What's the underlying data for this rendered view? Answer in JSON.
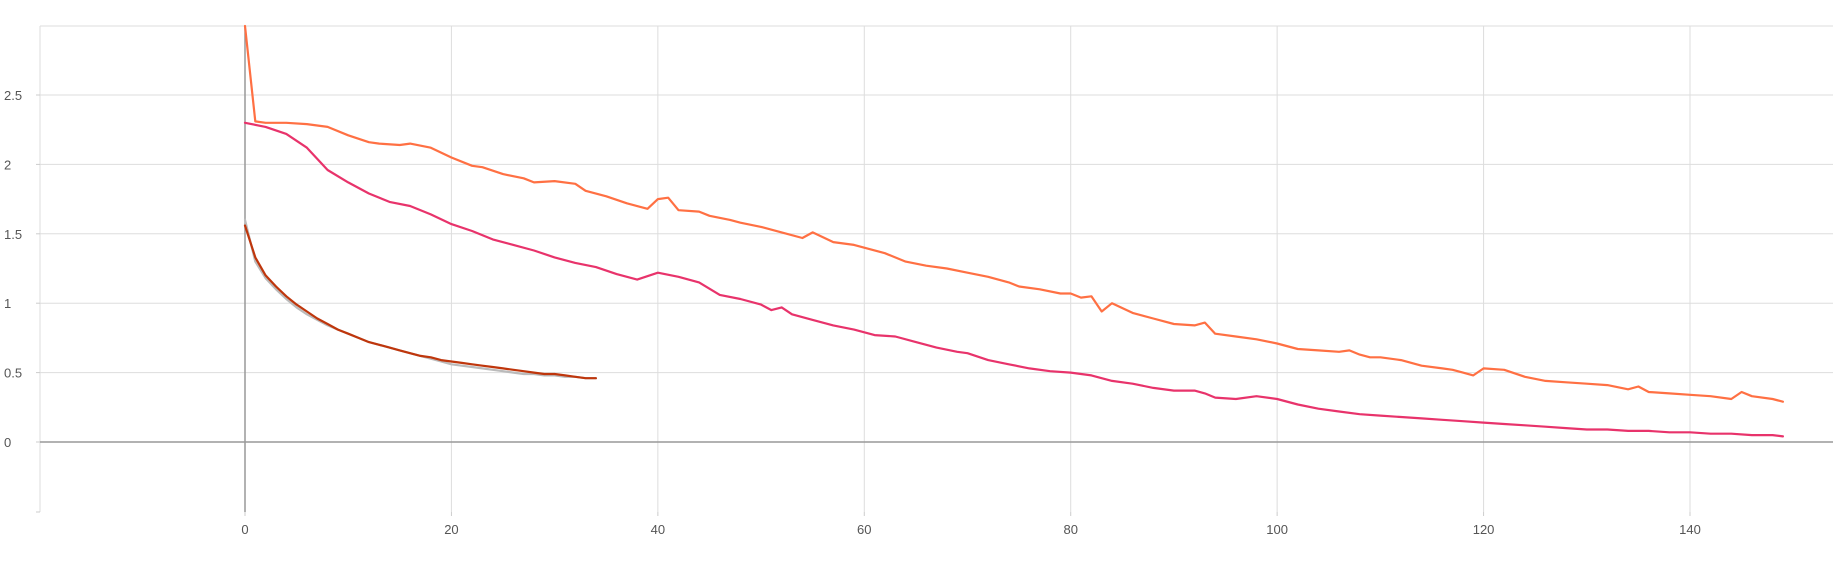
{
  "chart_data": {
    "type": "line",
    "title": "",
    "xlabel": "",
    "ylabel": "",
    "xlim": [
      -20,
      155
    ],
    "ylim": [
      -0.5,
      3
    ],
    "xticks": [
      0,
      20,
      40,
      60,
      80,
      100,
      120,
      140
    ],
    "yticks": [
      0,
      0.5,
      1,
      1.5,
      2,
      2.5
    ],
    "xtick_labels": [
      "0",
      "20",
      "40",
      "60",
      "80",
      "100",
      "120",
      "140"
    ],
    "ytick_labels": [
      "0",
      "0.5",
      "1",
      "1.5",
      "2",
      "2.5"
    ],
    "grid": true,
    "series": [
      {
        "color": "#ff7043",
        "x": [
          0,
          1,
          2,
          4,
          6,
          8,
          10,
          12,
          13,
          15,
          16,
          18,
          20,
          22,
          23,
          25,
          27,
          28,
          30,
          32,
          33,
          35,
          37,
          39,
          40,
          41,
          42,
          44,
          45,
          47,
          48,
          50,
          52,
          54,
          55,
          57,
          59,
          60,
          62,
          64,
          66,
          68,
          70,
          72,
          74,
          75,
          77,
          79,
          80,
          81,
          82,
          83,
          84,
          86,
          88,
          90,
          92,
          93,
          94,
          96,
          98,
          100,
          102,
          104,
          106,
          107,
          108,
          109,
          110,
          112,
          114,
          116,
          117,
          118,
          119,
          120,
          122,
          124,
          126,
          128,
          130,
          132,
          134,
          135,
          136,
          138,
          140,
          142,
          144,
          145,
          146,
          148,
          149
        ],
        "y": [
          3.0,
          2.31,
          2.3,
          2.3,
          2.29,
          2.27,
          2.21,
          2.16,
          2.15,
          2.14,
          2.15,
          2.12,
          2.05,
          1.99,
          1.98,
          1.93,
          1.9,
          1.87,
          1.88,
          1.86,
          1.81,
          1.77,
          1.72,
          1.68,
          1.75,
          1.76,
          1.67,
          1.66,
          1.63,
          1.6,
          1.58,
          1.55,
          1.51,
          1.47,
          1.51,
          1.44,
          1.42,
          1.4,
          1.36,
          1.3,
          1.27,
          1.25,
          1.22,
          1.19,
          1.15,
          1.12,
          1.1,
          1.07,
          1.07,
          1.04,
          1.05,
          0.94,
          1.0,
          0.93,
          0.89,
          0.85,
          0.84,
          0.86,
          0.78,
          0.76,
          0.74,
          0.71,
          0.67,
          0.66,
          0.65,
          0.66,
          0.63,
          0.61,
          0.61,
          0.59,
          0.55,
          0.53,
          0.52,
          0.5,
          0.48,
          0.53,
          0.52,
          0.47,
          0.44,
          0.43,
          0.42,
          0.41,
          0.38,
          0.4,
          0.36,
          0.35,
          0.34,
          0.33,
          0.31,
          0.36,
          0.33,
          0.31,
          0.29
        ]
      },
      {
        "color": "#e8336b",
        "x": [
          0,
          2,
          4,
          6,
          8,
          10,
          12,
          14,
          16,
          18,
          20,
          22,
          24,
          26,
          28,
          30,
          32,
          34,
          36,
          38,
          40,
          42,
          44,
          46,
          48,
          50,
          51,
          52,
          53,
          55,
          57,
          59,
          61,
          63,
          65,
          67,
          69,
          70,
          72,
          74,
          76,
          78,
          80,
          82,
          84,
          86,
          88,
          90,
          92,
          93,
          94,
          96,
          98,
          100,
          102,
          104,
          106,
          108,
          110,
          112,
          114,
          116,
          118,
          120,
          122,
          124,
          126,
          128,
          130,
          132,
          134,
          136,
          138,
          140,
          142,
          144,
          146,
          148,
          149
        ],
        "y": [
          2.3,
          2.27,
          2.22,
          2.12,
          1.96,
          1.87,
          1.79,
          1.73,
          1.7,
          1.64,
          1.57,
          1.52,
          1.46,
          1.42,
          1.38,
          1.33,
          1.29,
          1.26,
          1.21,
          1.17,
          1.22,
          1.19,
          1.15,
          1.06,
          1.03,
          0.99,
          0.95,
          0.97,
          0.92,
          0.88,
          0.84,
          0.81,
          0.77,
          0.76,
          0.72,
          0.68,
          0.65,
          0.64,
          0.59,
          0.56,
          0.53,
          0.51,
          0.5,
          0.48,
          0.44,
          0.42,
          0.39,
          0.37,
          0.37,
          0.35,
          0.32,
          0.31,
          0.33,
          0.31,
          0.27,
          0.24,
          0.22,
          0.2,
          0.19,
          0.18,
          0.17,
          0.16,
          0.15,
          0.14,
          0.13,
          0.12,
          0.11,
          0.1,
          0.09,
          0.09,
          0.08,
          0.08,
          0.07,
          0.07,
          0.06,
          0.06,
          0.05,
          0.05,
          0.04
        ]
      },
      {
        "color": "#bbbbbb",
        "x": [
          0,
          1,
          2,
          3,
          4,
          5,
          6,
          7,
          8,
          9,
          10,
          11,
          12,
          13,
          14,
          15,
          16,
          17,
          18,
          19,
          20,
          21,
          22,
          23,
          24,
          25,
          26,
          27,
          28,
          29,
          30,
          31,
          32,
          33,
          34
        ],
        "y": [
          1.6,
          1.3,
          1.18,
          1.1,
          1.03,
          0.97,
          0.92,
          0.88,
          0.84,
          0.81,
          0.78,
          0.75,
          0.72,
          0.7,
          0.68,
          0.66,
          0.64,
          0.62,
          0.6,
          0.58,
          0.56,
          0.55,
          0.54,
          0.53,
          0.52,
          0.51,
          0.5,
          0.49,
          0.49,
          0.48,
          0.48,
          0.47,
          0.47,
          0.46,
          0.46
        ]
      },
      {
        "color": "#bf360c",
        "x": [
          0,
          1,
          2,
          3,
          4,
          5,
          6,
          7,
          8,
          9,
          10,
          11,
          12,
          13,
          14,
          15,
          16,
          17,
          18,
          19,
          20,
          21,
          22,
          23,
          24,
          25,
          26,
          27,
          28,
          29,
          30,
          31,
          32,
          33,
          34
        ],
        "y": [
          1.56,
          1.33,
          1.2,
          1.12,
          1.05,
          0.99,
          0.94,
          0.89,
          0.85,
          0.81,
          0.78,
          0.75,
          0.72,
          0.7,
          0.68,
          0.66,
          0.64,
          0.62,
          0.61,
          0.59,
          0.58,
          0.57,
          0.56,
          0.55,
          0.54,
          0.53,
          0.52,
          0.51,
          0.5,
          0.49,
          0.49,
          0.48,
          0.47,
          0.46,
          0.46
        ]
      }
    ]
  }
}
